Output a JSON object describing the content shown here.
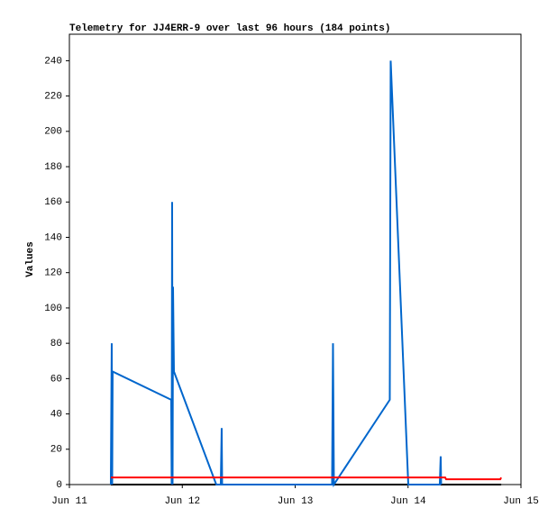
{
  "chart_data": {
    "type": "line",
    "title": "Telemetry for JJ4ERR-9 over last 96 hours (184 points)",
    "y_label": "Values",
    "xlim": [
      11,
      15
    ],
    "xticks": [
      {
        "value": 11,
        "label": "Jun 11"
      },
      {
        "value": 12,
        "label": "Jun 12"
      },
      {
        "value": 13,
        "label": "Jun 13"
      },
      {
        "value": 14,
        "label": "Jun 14"
      },
      {
        "value": 15,
        "label": "Jun 15"
      }
    ],
    "ylim": [
      0,
      255
    ],
    "yticks": [
      0,
      20,
      40,
      60,
      80,
      100,
      120,
      140,
      160,
      180,
      200,
      220,
      240
    ],
    "series": [
      {
        "color": "#000000",
        "x": [
          11.367,
          14.825
        ],
        "values": [
          0,
          0
        ]
      },
      {
        "color": "#0066cc",
        "x": [
          11.367,
          11.375,
          11.379,
          11.383,
          11.902,
          11.906,
          11.91,
          11.914,
          11.918,
          11.926,
          12.301,
          12.341,
          12.349,
          12.353,
          13.327,
          13.335,
          13.343,
          13.838,
          13.846,
          14.002,
          14.281,
          14.289,
          14.293
        ],
        "values": [
          0,
          80,
          0,
          64,
          48,
          0,
          160,
          0,
          112,
          64,
          0,
          0,
          32,
          0,
          0,
          80,
          0,
          48,
          240,
          0,
          0,
          16,
          0
        ]
      },
      {
        "color": "#ff0000",
        "x": [
          11.367,
          14.329,
          14.337,
          14.817,
          14.825
        ],
        "values": [
          4,
          4,
          3,
          3,
          4
        ]
      }
    ]
  }
}
